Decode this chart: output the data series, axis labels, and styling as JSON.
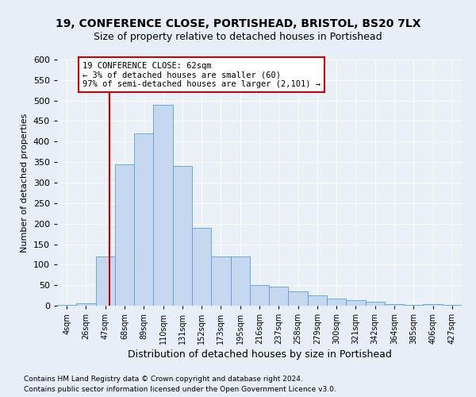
{
  "title1": "19, CONFERENCE CLOSE, PORTISHEAD, BRISTOL, BS20 7LX",
  "title2": "Size of property relative to detached houses in Portishead",
  "xlabel": "Distribution of detached houses by size in Portishead",
  "ylabel": "Number of detached properties",
  "footnote1": "Contains HM Land Registry data © Crown copyright and database right 2024.",
  "footnote2": "Contains public sector information licensed under the Open Government Licence v3.0.",
  "bin_labels": [
    "4sqm",
    "26sqm",
    "47sqm",
    "68sqm",
    "89sqm",
    "110sqm",
    "131sqm",
    "152sqm",
    "173sqm",
    "195sqm",
    "216sqm",
    "237sqm",
    "258sqm",
    "279sqm",
    "300sqm",
    "321sqm",
    "342sqm",
    "364sqm",
    "385sqm",
    "406sqm",
    "427sqm"
  ],
  "bar_values": [
    2,
    5,
    120,
    345,
    420,
    490,
    340,
    190,
    120,
    120,
    50,
    47,
    35,
    25,
    18,
    14,
    10,
    3,
    2,
    3,
    2
  ],
  "bar_color": "#c5d8f0",
  "bar_edge_color": "#5a9fd4",
  "subject_line_color": "#cc0000",
  "annotation_text": "19 CONFERENCE CLOSE: 62sqm\n← 3% of detached houses are smaller (60)\n97% of semi-detached houses are larger (2,101) →",
  "annotation_box_color": "#ffffff",
  "annotation_box_edge": "#cc0000",
  "ylim": [
    0,
    600
  ],
  "yticks": [
    0,
    50,
    100,
    150,
    200,
    250,
    300,
    350,
    400,
    450,
    500,
    550,
    600
  ],
  "bg_color": "#e8eef7",
  "plot_bg_color": "#eaf0f8",
  "title1_fontsize": 10,
  "title2_fontsize": 9,
  "footnote_fontsize": 6.5,
  "ylabel_fontsize": 8,
  "xlabel_fontsize": 9
}
